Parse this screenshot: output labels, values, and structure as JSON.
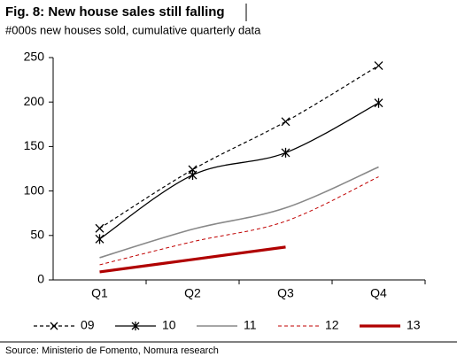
{
  "chart_data": {
    "type": "line",
    "title": "Fig. 8: New house sales still falling",
    "subtitle": "#000s new houses sold, cumulative quarterly data",
    "source": "Source: Ministerio de Fomento, Nomura research",
    "categories": [
      "Q1",
      "Q2",
      "Q3",
      "Q4"
    ],
    "ylim": [
      0,
      250
    ],
    "yticks": [
      0,
      50,
      100,
      150,
      200,
      250
    ],
    "legend": "bottom",
    "series": [
      {
        "name": "09",
        "color": "#000000",
        "style": "dashed",
        "marker": "x",
        "values": [
          58,
          124,
          178,
          241
        ]
      },
      {
        "name": "10",
        "color": "#000000",
        "style": "solid",
        "marker": "star",
        "values": [
          46,
          118,
          143,
          199
        ]
      },
      {
        "name": "11",
        "color": "#888888",
        "style": "solid",
        "values": [
          25,
          57,
          81,
          127
        ]
      },
      {
        "name": "12",
        "color": "#c00000",
        "style": "dashed",
        "values": [
          17,
          43,
          66,
          116
        ]
      },
      {
        "name": "13",
        "color": "#b00000",
        "style": "thick",
        "values": [
          9,
          23,
          37,
          null
        ]
      }
    ]
  }
}
